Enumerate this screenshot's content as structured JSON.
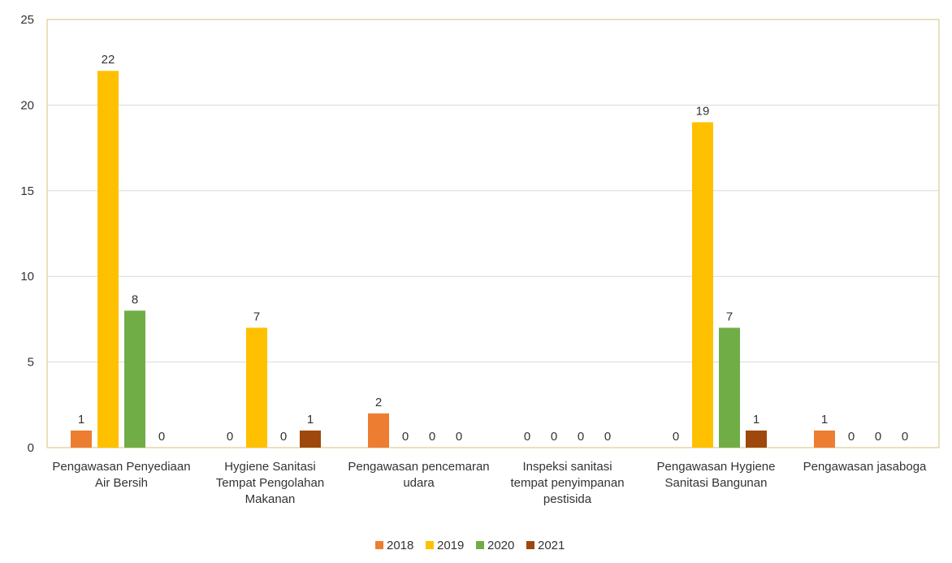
{
  "chart_data": {
    "type": "bar",
    "title": "",
    "xlabel": "",
    "ylabel": "",
    "ylim": [
      0,
      25
    ],
    "yticks": [
      0,
      5,
      10,
      15,
      20,
      25
    ],
    "grid": true,
    "legend_position": "bottom",
    "categories": [
      "Pengawasan Penyediaan Air Bersih",
      "Hygiene Sanitasi Tempat Pengolahan Makanan",
      "Pengawasan pencemaran udara",
      "Inspeksi sanitasi tempat penyimpanan pestisida",
      "Pengawasan Hygiene Sanitasi Bangunan",
      "Pengawasan jasaboga"
    ],
    "series": [
      {
        "name": "2018",
        "color": "#ED7D31",
        "values": [
          1,
          0,
          2,
          0,
          0,
          1
        ]
      },
      {
        "name": "2019",
        "color": "#FFC000",
        "values": [
          22,
          7,
          0,
          0,
          19,
          0
        ]
      },
      {
        "name": "2020",
        "color": "#70AD47",
        "values": [
          8,
          0,
          0,
          0,
          7,
          0
        ]
      },
      {
        "name": "2021",
        "color": "#9E480E",
        "values": [
          0,
          1,
          0,
          0,
          1,
          0
        ]
      }
    ]
  }
}
